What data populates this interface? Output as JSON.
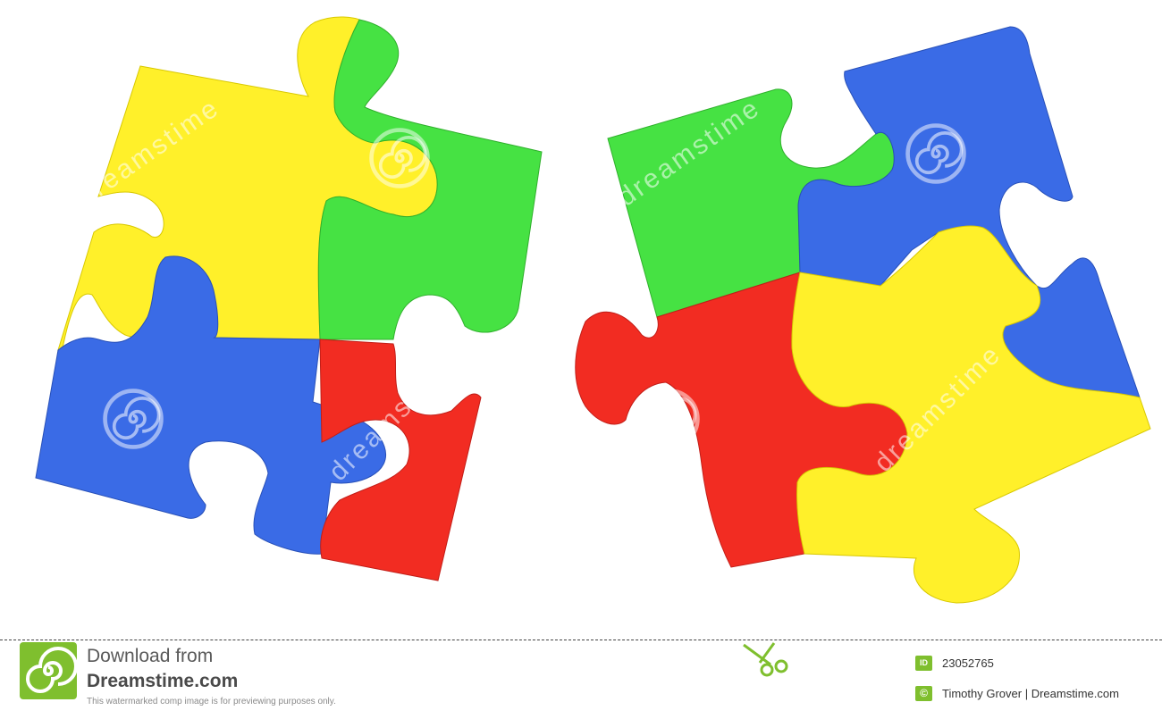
{
  "colors": {
    "yellow": "#fff02a",
    "green": "#46e243",
    "blue": "#3a6be6",
    "red": "#f22c22",
    "brand_green": "#7fbf2e"
  },
  "icons": [
    "spiral-watermark-icon",
    "scissors-icon",
    "dreamstime-logo-icon",
    "id-badge-icon",
    "copyright-icon"
  ],
  "watermark": {
    "text": "dreamstime"
  },
  "footer": {
    "download_line1": "Download from",
    "download_line2": "Dreamstime.com",
    "notice": "This watermarked comp image is for previewing purposes only.",
    "id_badge": "ID",
    "image_id": "23052765",
    "copyright_badge": "©",
    "author": "Timothy Grover | Dreamstime.com"
  }
}
